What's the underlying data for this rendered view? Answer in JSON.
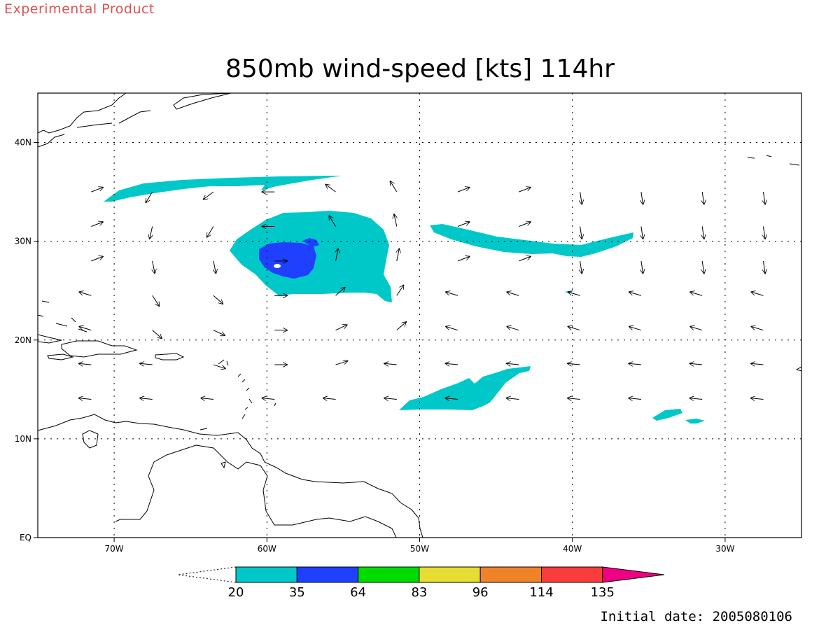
{
  "header": {
    "product_tag": "Experimental Product",
    "title": "850mb wind-speed [kts] 114hr",
    "initial_date": "Initial date: 2005080106"
  },
  "map": {
    "lon_range": [
      -75,
      -25
    ],
    "lat_range": [
      0,
      45
    ],
    "lon_ticks": [
      {
        "value": -70,
        "label": "70W"
      },
      {
        "value": -60,
        "label": "60W"
      },
      {
        "value": -50,
        "label": "50W"
      },
      {
        "value": -40,
        "label": "40W"
      },
      {
        "value": -30,
        "label": "30W"
      }
    ],
    "lat_ticks": [
      {
        "value": 0,
        "label": "EQ"
      },
      {
        "value": 10,
        "label": "10N"
      },
      {
        "value": 20,
        "label": "20N"
      },
      {
        "value": 30,
        "label": "30N"
      },
      {
        "value": 40,
        "label": "40N"
      }
    ],
    "grid": "dotted",
    "fill_colors": {
      "20": "#00c8c8",
      "35": "#2040ff",
      "64": "#00dc00",
      "83": "#e6dc32",
      "96": "#f08228",
      "114": "#fa3c3c",
      "135": "#f00082"
    }
  },
  "colorbar": {
    "labels": [
      "20",
      "35",
      "64",
      "83",
      "96",
      "114",
      "135"
    ],
    "colors": [
      "#00c8c8",
      "#2040ff",
      "#00dc00",
      "#e6dc32",
      "#f08228",
      "#fa3c3c",
      "#f00082"
    ]
  }
}
